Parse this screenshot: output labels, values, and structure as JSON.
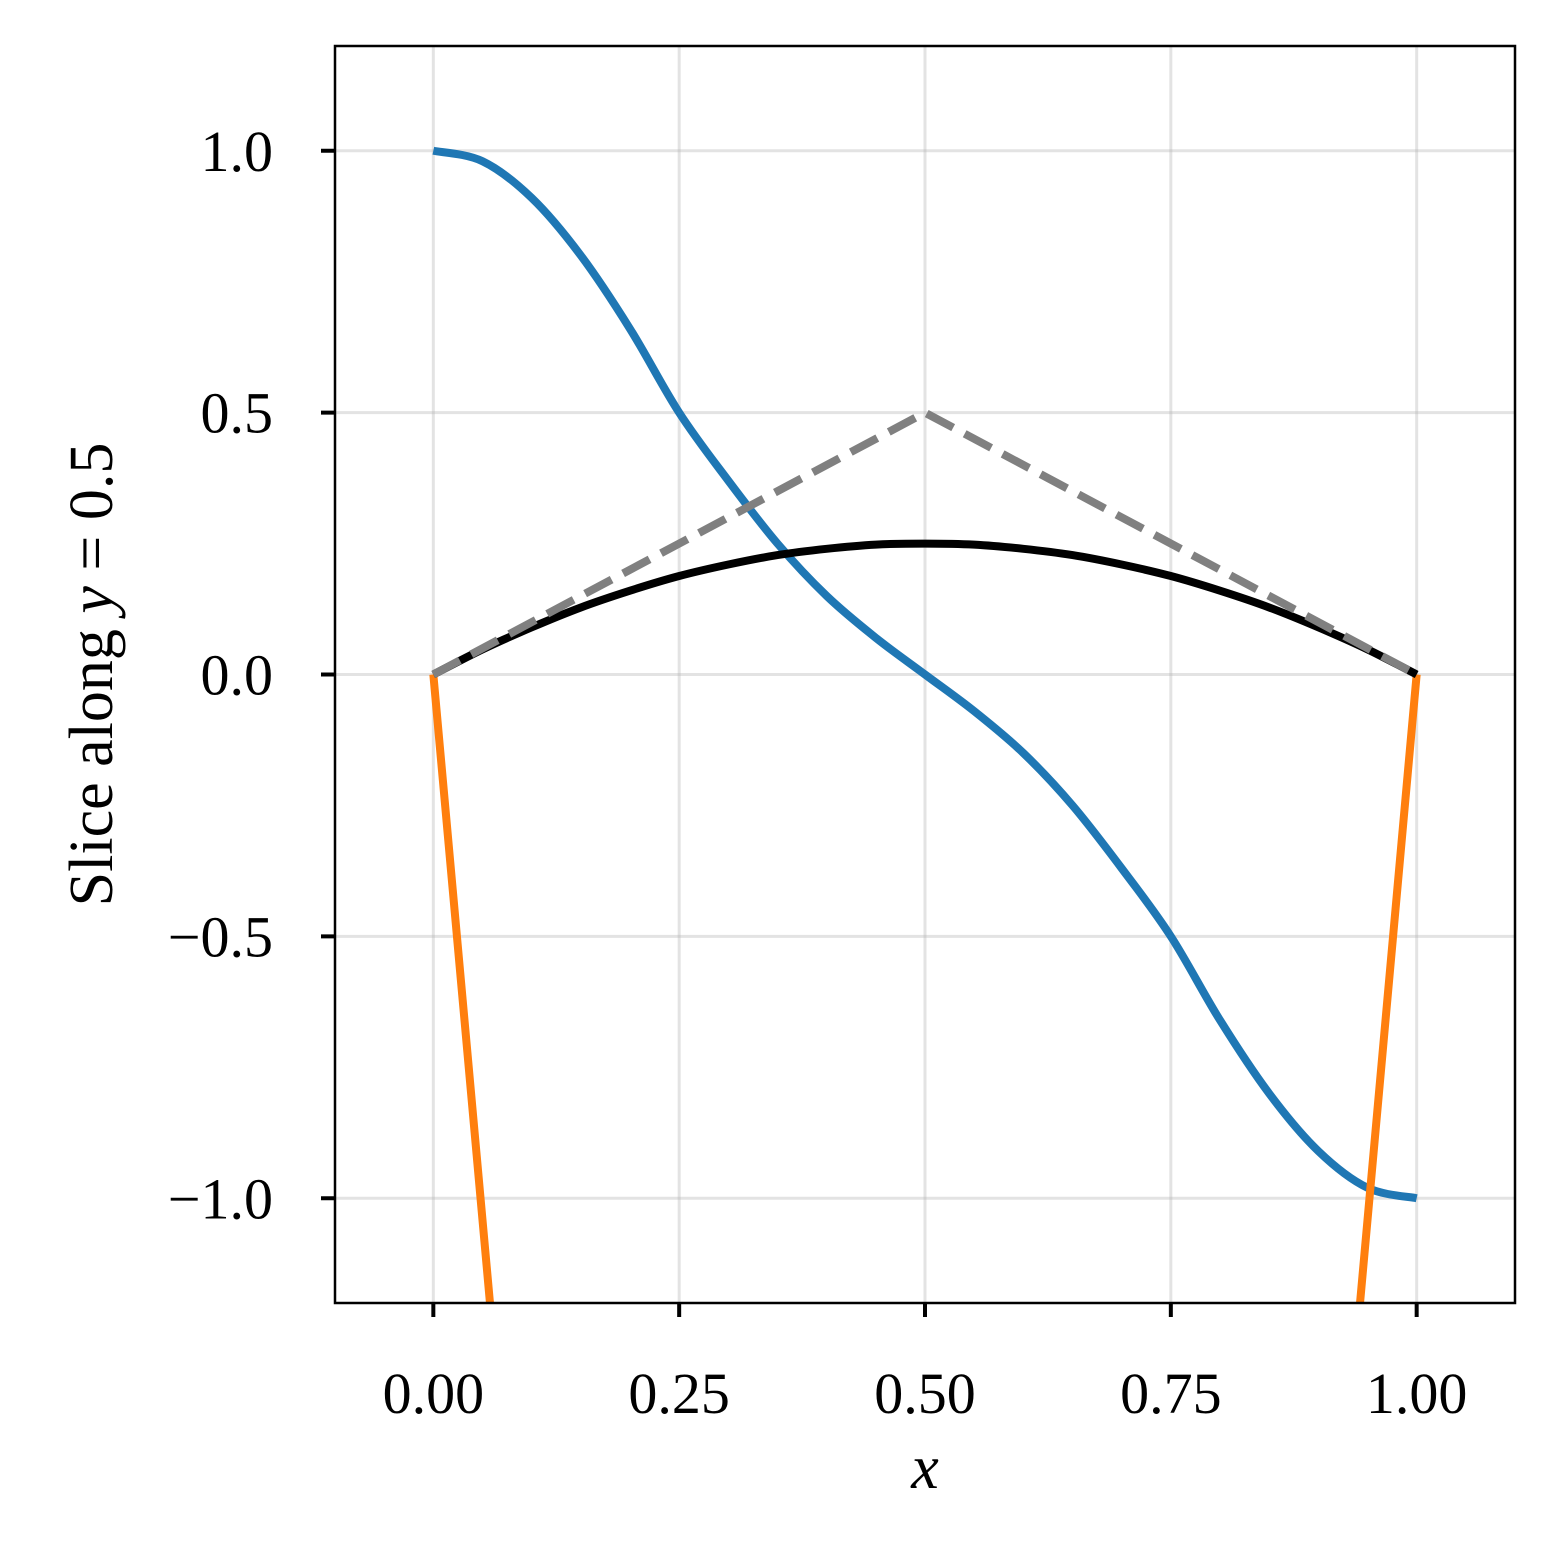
{
  "chart_data": {
    "type": "line",
    "title": "",
    "xlabel": "x",
    "ylabel": {
      "text": "Slice along ",
      "var": "y",
      "rest": " = 0.5"
    },
    "xlim": [
      -0.1,
      1.1
    ],
    "ylim": [
      -1.2,
      1.2
    ],
    "grid": true,
    "legend": "none",
    "x_ticks": [
      0.0,
      0.25,
      0.5,
      0.75,
      1.0
    ],
    "x_tick_labels": [
      "0.00",
      "0.25",
      "0.50",
      "0.75",
      "1.00"
    ],
    "y_ticks": [
      -1.0,
      -0.5,
      0.0,
      0.5,
      1.0
    ],
    "y_tick_labels": [
      "−1.0",
      "−0.5",
      "0.0",
      "0.5",
      "1.0"
    ],
    "series": [
      {
        "color": "#1f77b4",
        "style": "solid",
        "x": [
          0.0,
          0.05,
          0.1,
          0.15,
          0.2,
          0.25,
          0.3,
          0.35,
          0.4,
          0.45,
          0.5,
          0.55,
          0.6,
          0.65,
          0.7,
          0.75,
          0.8,
          0.85,
          0.9,
          0.95,
          1.0
        ],
        "y": [
          1.0,
          0.98,
          0.91,
          0.8,
          0.66,
          0.5,
          0.37,
          0.25,
          0.15,
          0.07,
          0.0,
          -0.07,
          -0.15,
          -0.25,
          -0.37,
          -0.5,
          -0.66,
          -0.8,
          -0.91,
          -0.98,
          -1.0
        ]
      },
      {
        "color": "#ff7f0e",
        "style": "solid",
        "x": [
          0.0,
          0.06,
          0.94,
          1.0
        ],
        "y": [
          0.0,
          -1.25,
          -1.25,
          0.0
        ]
      },
      {
        "color": "#000000",
        "style": "solid",
        "x": [
          0.0,
          0.05,
          0.1,
          0.15,
          0.2,
          0.25,
          0.3,
          0.35,
          0.4,
          0.45,
          0.5,
          0.55,
          0.6,
          0.65,
          0.7,
          0.75,
          0.8,
          0.85,
          0.9,
          0.95,
          1.0
        ],
        "y": [
          0.0,
          0.048,
          0.09,
          0.128,
          0.16,
          0.188,
          0.21,
          0.228,
          0.24,
          0.248,
          0.25,
          0.248,
          0.24,
          0.228,
          0.21,
          0.188,
          0.16,
          0.128,
          0.09,
          0.048,
          0.0
        ]
      },
      {
        "color": "#808080",
        "style": "dashed",
        "x": [
          0.0,
          0.5,
          1.0
        ],
        "y": [
          0.0,
          0.5,
          0.0
        ]
      }
    ]
  }
}
